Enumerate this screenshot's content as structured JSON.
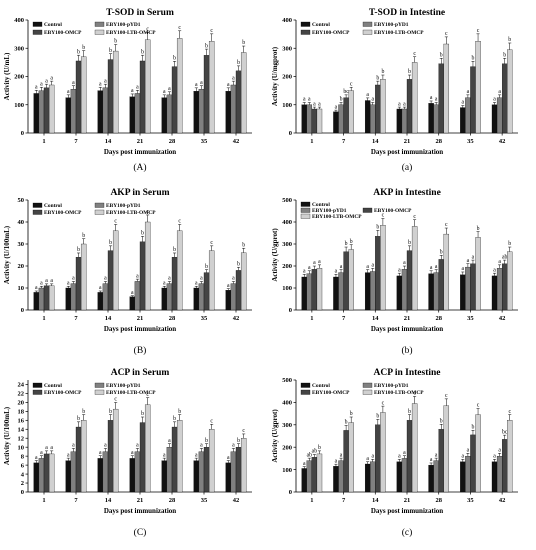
{
  "panels": [
    {
      "caption": "(A)",
      "chart_data": {
        "type": "bar",
        "title": "T-SOD in Serum",
        "xlabel": "Days post immunization",
        "ylabel": "Activity (U/mL)",
        "ylim": [
          0,
          400
        ],
        "yticks": [
          0,
          100,
          200,
          300,
          400
        ],
        "categories": [
          "1",
          "7",
          "14",
          "21",
          "28",
          "35",
          "42"
        ],
        "series": [
          {
            "name": "Control",
            "color": "#111111",
            "values": [
              140,
              125,
              150,
              128,
              125,
              148,
              148
            ]
          },
          {
            "name": "EBY100-pYD1",
            "color": "#808080",
            "values": [
              150,
              155,
              160,
              140,
              135,
              155,
              170
            ]
          },
          {
            "name": "EBY100-OMCP",
            "color": "#444444",
            "values": [
              160,
              255,
              260,
              255,
              235,
              275,
              220
            ]
          },
          {
            "name": "EBY100-LTB-OMCP",
            "color": "#d0d0d0",
            "values": [
              170,
              270,
              290,
              330,
              335,
              325,
              285
            ]
          }
        ],
        "labels": [
          [
            "a",
            "a",
            "a",
            "a"
          ],
          [
            "a",
            "a",
            "b",
            "b"
          ],
          [
            "a",
            "a",
            "b",
            "b"
          ],
          [
            "a",
            "a",
            "b",
            "c"
          ],
          [
            "a",
            "a",
            "b",
            "c"
          ],
          [
            "a",
            "a",
            "b",
            "c"
          ],
          [
            "a",
            "a",
            "b",
            "b"
          ]
        ]
      }
    },
    {
      "caption": "(a)",
      "chart_data": {
        "type": "bar",
        "title": "T-SOD in Intestine",
        "xlabel": "Days post immunization",
        "ylabel": "Activity (U/mgprot)",
        "ylim": [
          0,
          400
        ],
        "yticks": [
          0,
          100,
          200,
          300,
          400
        ],
        "categories": [
          "1",
          "7",
          "14",
          "21",
          "28",
          "35",
          "42"
        ],
        "series": [
          {
            "name": "Control",
            "color": "#111111",
            "values": [
              100,
              75,
              115,
              85,
              105,
              90,
              100
            ]
          },
          {
            "name": "EBY100-pYD1",
            "color": "#808080",
            "values": [
              100,
              100,
              100,
              85,
              100,
              125,
              125
            ]
          },
          {
            "name": "EBY100-OMCP",
            "color": "#444444",
            "values": [
              85,
              125,
              170,
              190,
              245,
              235,
              245
            ]
          },
          {
            "name": "EBY100-LTB-OMCP",
            "color": "#d0d0d0",
            "values": [
              85,
              150,
              190,
              250,
              315,
              325,
              295
            ]
          }
        ],
        "labels": [
          [
            "a",
            "a",
            "a",
            "a"
          ],
          [
            "a",
            "b",
            "bc",
            "c"
          ],
          [
            "a",
            "a",
            "b",
            "b"
          ],
          [
            "a",
            "a",
            "b",
            "c"
          ],
          [
            "a",
            "a",
            "b",
            "c"
          ],
          [
            "a",
            "a",
            "b",
            "c"
          ],
          [
            "a",
            "a",
            "b",
            "b"
          ]
        ]
      }
    },
    {
      "caption": "(B)",
      "chart_data": {
        "type": "bar",
        "title": "AKP in Serum",
        "xlabel": "Days post immunization",
        "ylabel": "Activity (U/100mL)",
        "ylim": [
          0,
          50
        ],
        "yticks": [
          0,
          10,
          20,
          30,
          40,
          50
        ],
        "categories": [
          "1",
          "7",
          "14",
          "21",
          "28",
          "35",
          "42"
        ],
        "series": [
          {
            "name": "Control",
            "color": "#111111",
            "values": [
              8,
              10,
              8,
              6,
              10,
              10,
              9
            ]
          },
          {
            "name": "EBY100-pYD1",
            "color": "#808080",
            "values": [
              10,
              12,
              12,
              13,
              12,
              12,
              12
            ]
          },
          {
            "name": "EBY100-OMCP",
            "color": "#444444",
            "values": [
              11,
              24,
              27,
              31,
              24,
              17,
              18
            ]
          },
          {
            "name": "EBY100-LTB-OMCP",
            "color": "#d0d0d0",
            "values": [
              11,
              30,
              36,
              40,
              36,
              27,
              26
            ]
          }
        ],
        "labels": [
          [
            "a",
            "a",
            "a",
            "a"
          ],
          [
            "a",
            "a",
            "b",
            "b"
          ],
          [
            "a",
            "a",
            "b",
            "c"
          ],
          [
            "a",
            "a",
            "b",
            "c"
          ],
          [
            "a",
            "a",
            "b",
            "c"
          ],
          [
            "a",
            "a",
            "b",
            "c"
          ],
          [
            "a",
            "a",
            "b",
            "b"
          ]
        ]
      }
    },
    {
      "caption": "(b)",
      "chart_data": {
        "type": "bar",
        "title": "AKP in Intestine",
        "xlabel": "Days post immunization",
        "ylabel": "Activity (U/gprot)",
        "ylim": [
          0,
          500
        ],
        "yticks": [
          0,
          100,
          200,
          300,
          400,
          500
        ],
        "categories": [
          "1",
          "7",
          "14",
          "21",
          "28",
          "35",
          "42"
        ],
        "series": [
          {
            "name": "Control",
            "color": "#111111",
            "values": [
              150,
              150,
              170,
              155,
              165,
              160,
              155
            ]
          },
          {
            "name": "EBY100-pYD1",
            "color": "#808080",
            "values": [
              165,
              170,
              175,
              185,
              170,
              195,
              190
            ]
          },
          {
            "name": "EBY100-OMCP",
            "color": "#444444",
            "values": [
              185,
              265,
              335,
              270,
              230,
              210,
              210
            ]
          },
          {
            "name": "EBY100-LTB-OMCP",
            "color": "#d0d0d0",
            "values": [
              190,
              275,
              385,
              380,
              345,
              330,
              265
            ]
          }
        ],
        "labels": [
          [
            "a",
            "a",
            "a",
            "a"
          ],
          [
            "a",
            "a",
            "b",
            "b"
          ],
          [
            "a",
            "a",
            "b",
            "c"
          ],
          [
            "a",
            "a",
            "b",
            "c"
          ],
          [
            "a",
            "a",
            "b",
            "c"
          ],
          [
            "a",
            "a",
            "a",
            "b"
          ],
          [
            "a",
            "a",
            "ab",
            "b"
          ]
        ]
      }
    },
    {
      "caption": "(C)",
      "chart_data": {
        "type": "bar",
        "title": "ACP in Serum",
        "xlabel": "Days post immunization",
        "ylabel": "Activity (U/100mL)",
        "ylim": [
          0,
          25
        ],
        "yticks": [
          0,
          2,
          4,
          6,
          8,
          10,
          12,
          14,
          16,
          18,
          20,
          22,
          24
        ],
        "categories": [
          "1",
          "7",
          "14",
          "21",
          "28",
          "35",
          "42"
        ],
        "series": [
          {
            "name": "Control",
            "color": "#111111",
            "values": [
              6.5,
              7,
              7.5,
              7.5,
              7,
              7,
              6.5
            ]
          },
          {
            "name": "EBY100-pYD1",
            "color": "#808080",
            "values": [
              7.5,
              9,
              9,
              9,
              10,
              9,
              9
            ]
          },
          {
            "name": "EBY100-OMCP",
            "color": "#444444",
            "values": [
              8.5,
              14.5,
              16,
              15.5,
              14.5,
              10,
              10
            ]
          },
          {
            "name": "EBY100-LTB-OMCP",
            "color": "#d0d0d0",
            "values": [
              8.5,
              16,
              18.5,
              19.5,
              16,
              14,
              12
            ]
          }
        ],
        "labels": [
          [
            "a",
            "a",
            "a",
            "a"
          ],
          [
            "a",
            "a",
            "b",
            "b"
          ],
          [
            "a",
            "a",
            "b",
            "c"
          ],
          [
            "a",
            "a",
            "b",
            "c"
          ],
          [
            "a",
            "a",
            "b",
            "b"
          ],
          [
            "a",
            "a",
            "b",
            "c"
          ],
          [
            "a",
            "a",
            "b",
            "c"
          ]
        ]
      }
    },
    {
      "caption": "(c)",
      "chart_data": {
        "type": "bar",
        "title": "ACP in Intestine",
        "xlabel": "Days post immunization",
        "ylabel": "Activity (U/gprot)",
        "ylim": [
          0,
          500
        ],
        "yticks": [
          0,
          100,
          200,
          300,
          400,
          500
        ],
        "categories": [
          "1",
          "7",
          "14",
          "21",
          "28",
          "35",
          "42"
        ],
        "series": [
          {
            "name": "Control",
            "color": "#111111",
            "values": [
              105,
              115,
              125,
              135,
              120,
              135,
              135
            ]
          },
          {
            "name": "EBY100-pYD1",
            "color": "#808080",
            "values": [
              140,
              140,
              135,
              150,
              140,
              160,
              160
            ]
          },
          {
            "name": "EBY100-OMCP",
            "color": "#444444",
            "values": [
              155,
              275,
              300,
              320,
              280,
              255,
              235
            ]
          },
          {
            "name": "EBY100-LTB-OMCP",
            "color": "#d0d0d0",
            "values": [
              170,
              310,
              355,
              395,
              385,
              345,
              320
            ]
          }
        ],
        "labels": [
          [
            "a",
            "ab",
            "ab",
            "b"
          ],
          [
            "a",
            "a",
            "b",
            "b"
          ],
          [
            "a",
            "a",
            "b",
            "c"
          ],
          [
            "a",
            "a",
            "b",
            "c"
          ],
          [
            "a",
            "a",
            "b",
            "c"
          ],
          [
            "a",
            "a",
            "b",
            "c"
          ],
          [
            "a",
            "a",
            "bc",
            "c"
          ]
        ]
      }
    }
  ]
}
